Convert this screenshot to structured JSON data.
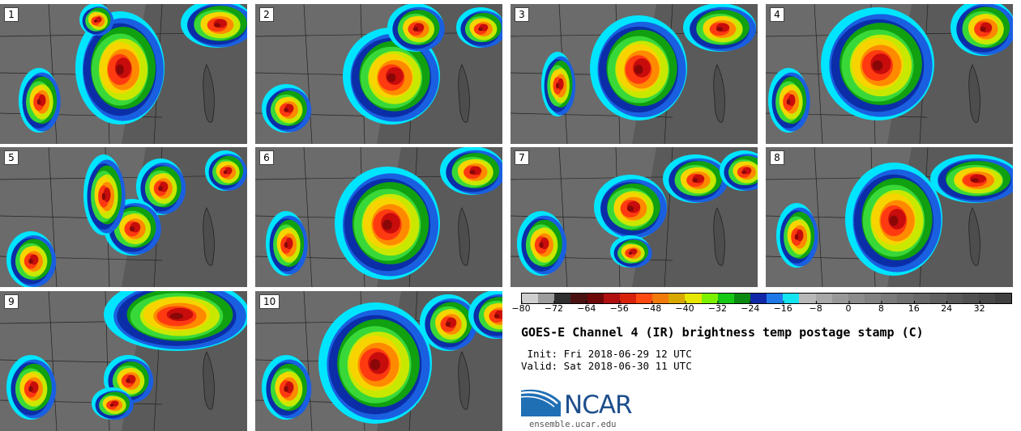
{
  "panels": [
    {
      "label": "1"
    },
    {
      "label": "2"
    },
    {
      "label": "3"
    },
    {
      "label": "4"
    },
    {
      "label": "5"
    },
    {
      "label": "6"
    },
    {
      "label": "7"
    },
    {
      "label": "8"
    },
    {
      "label": "9"
    },
    {
      "label": "10"
    }
  ],
  "colorbar": {
    "colors": [
      "#cfcfcf",
      "#9c9c9c",
      "#2f2f2f",
      "#4a1111",
      "#6e0808",
      "#b01010",
      "#d8220c",
      "#ff4a10",
      "#f07a0a",
      "#d8a800",
      "#e6e600",
      "#7df000",
      "#14c814",
      "#0a8a10",
      "#1028a8",
      "#1e78e8",
      "#14e4f0",
      "#b8b8b8",
      "#a8a8a8",
      "#989898",
      "#8c8c8c",
      "#828282",
      "#7a7a7a",
      "#707070",
      "#686868",
      "#606060",
      "#585858",
      "#505050",
      "#484848",
      "#404040"
    ],
    "tick_labels": [
      "−80",
      "−72",
      "−64",
      "−56",
      "−48",
      "−40",
      "−32",
      "−24",
      "−16",
      "−8",
      "0",
      "8",
      "16",
      "24",
      "32"
    ]
  },
  "title": "GOES-E Channel 4 (IR) brightness temp postage stamp (C)",
  "init_line": " Init: Fri 2018-06-29 12 UTC",
  "valid_line": "Valid: Sat 2018-06-30 11 UTC",
  "logo": {
    "text": "NCAR",
    "url": "ensemble.ucar.edu"
  }
}
